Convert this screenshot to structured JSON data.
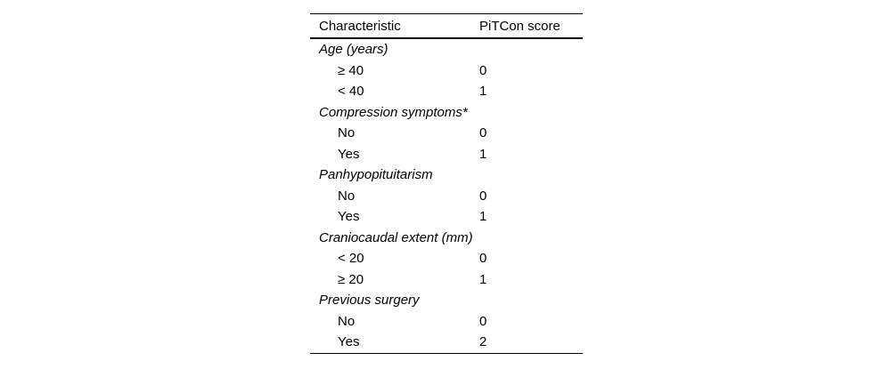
{
  "table": {
    "columns": {
      "characteristic": "Characteristic",
      "score": "PiTCon score"
    },
    "groups": [
      {
        "label": "Age (years)",
        "rows": [
          {
            "label": "≥ 40",
            "score": "0"
          },
          {
            "label": "< 40",
            "score": "1"
          }
        ]
      },
      {
        "label": "Compression symptoms*",
        "rows": [
          {
            "label": "No",
            "score": "0"
          },
          {
            "label": "Yes",
            "score": "1"
          }
        ]
      },
      {
        "label": "Panhypopituitarism",
        "rows": [
          {
            "label": "No",
            "score": "0"
          },
          {
            "label": "Yes",
            "score": "1"
          }
        ]
      },
      {
        "label": "Craniocaudal extent (mm)",
        "rows": [
          {
            "label": "< 20",
            "score": "0"
          },
          {
            "label": "≥ 20",
            "score": "1"
          }
        ]
      },
      {
        "label": "Previous surgery",
        "rows": [
          {
            "label": "No",
            "score": "0"
          },
          {
            "label": "Yes",
            "score": "2"
          }
        ]
      }
    ]
  }
}
